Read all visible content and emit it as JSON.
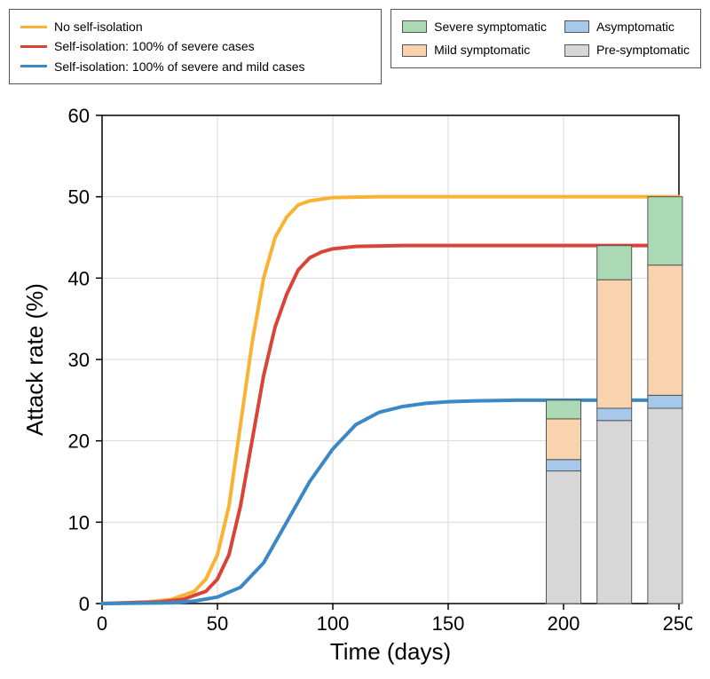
{
  "legend_lines": {
    "items": [
      {
        "label": "No self-isolation",
        "color": "#f9b233"
      },
      {
        "label": "Self-isolation: 100% of severe cases",
        "color": "#d94436"
      },
      {
        "label": "Self-isolation: 100% of severe and mild cases",
        "color": "#3b88c4"
      }
    ]
  },
  "legend_bars": {
    "items": [
      {
        "label": "Severe symptomatic",
        "color": "#aad9b3"
      },
      {
        "label": "Asymptomatic",
        "color": "#a6c8ea"
      },
      {
        "label": "Mild symptomatic",
        "color": "#f8d3ad"
      },
      {
        "label": "Pre-symptomatic",
        "color": "#d7d7d7"
      }
    ]
  },
  "chart": {
    "type": "line+stacked-bar",
    "xlabel": "Time (days)",
    "ylabel": "Attack rate (%)",
    "xlim": [
      0,
      250
    ],
    "ylim": [
      0,
      60
    ],
    "xticks": [
      0,
      50,
      100,
      150,
      200,
      250
    ],
    "yticks": [
      0,
      10,
      20,
      30,
      40,
      50,
      60
    ],
    "label_fontsize": 26,
    "tick_fontsize": 22,
    "background_color": "#ffffff",
    "grid_color": "#d9d9d9",
    "grid_line_width": 1,
    "axis_color": "#000000",
    "line_width": 4,
    "series": [
      {
        "name": "no-isolation",
        "color": "#f9b233",
        "points": [
          [
            0,
            0
          ],
          [
            20,
            0.2
          ],
          [
            30,
            0.5
          ],
          [
            40,
            1.5
          ],
          [
            45,
            3
          ],
          [
            50,
            6
          ],
          [
            55,
            12
          ],
          [
            60,
            22
          ],
          [
            65,
            32
          ],
          [
            70,
            40
          ],
          [
            75,
            45
          ],
          [
            80,
            47.5
          ],
          [
            85,
            49
          ],
          [
            90,
            49.5
          ],
          [
            100,
            49.9
          ],
          [
            120,
            50
          ],
          [
            250,
            50
          ]
        ]
      },
      {
        "name": "severe-isolation",
        "color": "#d94436",
        "points": [
          [
            0,
            0
          ],
          [
            25,
            0.2
          ],
          [
            35,
            0.5
          ],
          [
            45,
            1.5
          ],
          [
            50,
            3
          ],
          [
            55,
            6
          ],
          [
            60,
            12
          ],
          [
            65,
            20
          ],
          [
            70,
            28
          ],
          [
            75,
            34
          ],
          [
            80,
            38
          ],
          [
            85,
            41
          ],
          [
            90,
            42.5
          ],
          [
            95,
            43.2
          ],
          [
            100,
            43.6
          ],
          [
            110,
            43.9
          ],
          [
            130,
            44
          ],
          [
            250,
            44
          ]
        ]
      },
      {
        "name": "mild-isolation",
        "color": "#3b88c4",
        "points": [
          [
            0,
            0
          ],
          [
            30,
            0.1
          ],
          [
            40,
            0.3
          ],
          [
            50,
            0.8
          ],
          [
            60,
            2
          ],
          [
            70,
            5
          ],
          [
            80,
            10
          ],
          [
            90,
            15
          ],
          [
            100,
            19
          ],
          [
            110,
            22
          ],
          [
            120,
            23.5
          ],
          [
            130,
            24.2
          ],
          [
            140,
            24.6
          ],
          [
            150,
            24.8
          ],
          [
            160,
            24.9
          ],
          [
            180,
            25
          ],
          [
            250,
            25
          ]
        ]
      }
    ],
    "bars": {
      "bar_width_days": 15,
      "border_color": "#555555",
      "items": [
        {
          "x_center": 200,
          "segments": [
            {
              "key": "pre-symptomatic",
              "color": "#d7d7d7",
              "value": 16.3
            },
            {
              "key": "asymptomatic",
              "color": "#a6c8ea",
              "value": 1.4
            },
            {
              "key": "mild-symptomatic",
              "color": "#f8d3ad",
              "value": 5.0
            },
            {
              "key": "severe-symptomatic",
              "color": "#aad9b3",
              "value": 2.3
            }
          ]
        },
        {
          "x_center": 222,
          "segments": [
            {
              "key": "pre-symptomatic",
              "color": "#d7d7d7",
              "value": 22.5
            },
            {
              "key": "asymptomatic",
              "color": "#a6c8ea",
              "value": 1.5
            },
            {
              "key": "mild-symptomatic",
              "color": "#f8d3ad",
              "value": 15.8
            },
            {
              "key": "severe-symptomatic",
              "color": "#aad9b3",
              "value": 4.2
            }
          ]
        },
        {
          "x_center": 244,
          "segments": [
            {
              "key": "pre-symptomatic",
              "color": "#d7d7d7",
              "value": 24.0
            },
            {
              "key": "asymptomatic",
              "color": "#a6c8ea",
              "value": 1.6
            },
            {
              "key": "mild-symptomatic",
              "color": "#f8d3ad",
              "value": 16.0
            },
            {
              "key": "severe-symptomatic",
              "color": "#aad9b3",
              "value": 8.4
            }
          ]
        }
      ]
    }
  }
}
